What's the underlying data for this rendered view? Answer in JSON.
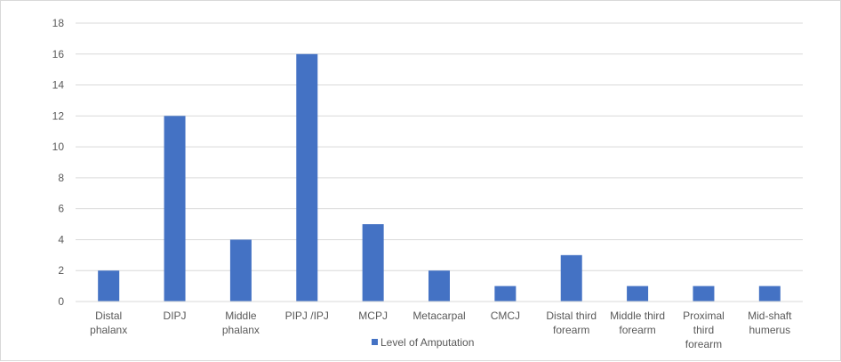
{
  "chart_data": {
    "type": "bar",
    "categories": [
      [
        "Distal",
        "phalanx"
      ],
      [
        "DIPJ"
      ],
      [
        "Middle",
        "phalanx"
      ],
      [
        "PIPJ /IPJ"
      ],
      [
        "MCPJ"
      ],
      [
        "Metacarpal"
      ],
      [
        "CMCJ"
      ],
      [
        "Distal third",
        "forearm"
      ],
      [
        "Middle third",
        "forearm"
      ],
      [
        "Proximal",
        "third",
        "forearm"
      ],
      [
        "Mid-shaft",
        "humerus"
      ]
    ],
    "series": [
      {
        "name": "Level of Amputation",
        "values": [
          2,
          12,
          4,
          16,
          5,
          2,
          1,
          3,
          1,
          1,
          1
        ],
        "color": "#4472c4"
      }
    ],
    "ylim": [
      0,
      18
    ],
    "yticks": [
      0,
      2,
      4,
      6,
      8,
      10,
      12,
      14,
      16,
      18
    ],
    "grid": true,
    "legend_position": "bottom"
  }
}
